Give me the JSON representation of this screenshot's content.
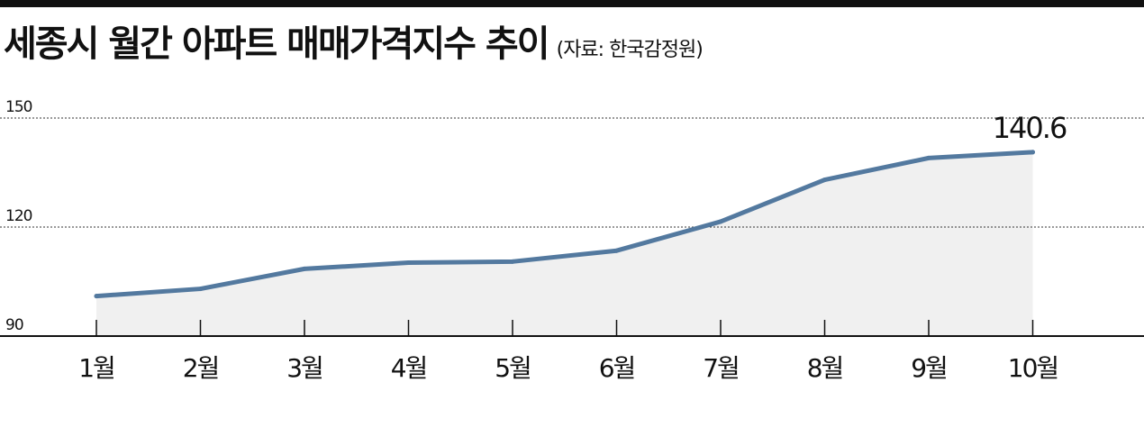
{
  "title": "세종시 월간 아파트 매매가격지수 추이",
  "source": "(자료: 한국감정원)",
  "colors": {
    "line": "#53799f",
    "area": "#f0f0f0",
    "grid": "#333333",
    "text": "#111111"
  },
  "chart_data": {
    "type": "line",
    "categories": [
      "1월",
      "2월",
      "3월",
      "4월",
      "5월",
      "6월",
      "7월",
      "8월",
      "9월",
      "10월"
    ],
    "values": [
      101.0,
      103.0,
      108.5,
      110.2,
      110.5,
      113.5,
      121.5,
      133.0,
      139.0,
      140.6
    ],
    "y_ticks": [
      150,
      120,
      90
    ],
    "ylim": [
      90,
      150
    ],
    "annotation": {
      "index": 9,
      "text": "140.6"
    },
    "grid": "dotted horizontal at ticks",
    "legend": "none"
  }
}
